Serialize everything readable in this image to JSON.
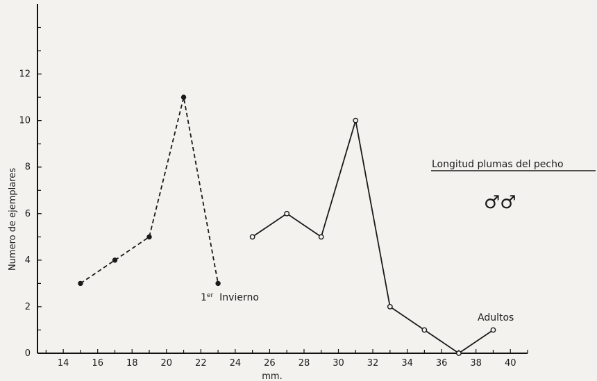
{
  "chart_data": {
    "type": "line",
    "title": "Longitud plumas del pecho",
    "legend_symbol": "♂♂",
    "xlabel": "mm.",
    "ylabel": "Numero de ejemplares",
    "xlim": [
      12.5,
      41
    ],
    "ylim": [
      0,
      15
    ],
    "x_ticks": [
      14,
      16,
      18,
      20,
      22,
      24,
      26,
      28,
      30,
      32,
      34,
      36,
      38,
      40
    ],
    "y_ticks": [
      0,
      2,
      4,
      6,
      8,
      10,
      12
    ],
    "grid": false,
    "series": [
      {
        "name": "1er Invierno",
        "style": "dashed",
        "marker": "filled",
        "color": "#1a1a1a",
        "x": [
          15,
          17,
          19,
          21,
          23
        ],
        "y": [
          3,
          4,
          5,
          11,
          3
        ]
      },
      {
        "name": "Adultos",
        "style": "solid",
        "marker": "open",
        "color": "#1a1a1a",
        "x": [
          25,
          27,
          29,
          31,
          33,
          35,
          37,
          39
        ],
        "y": [
          5,
          6,
          5,
          10,
          2,
          1,
          0,
          1
        ]
      }
    ],
    "annotations": [
      {
        "text": "1er Invierno",
        "superscript_prefix": "1",
        "superscript": "er",
        "rest": "Invierno"
      },
      {
        "text": "Adultos"
      }
    ]
  }
}
